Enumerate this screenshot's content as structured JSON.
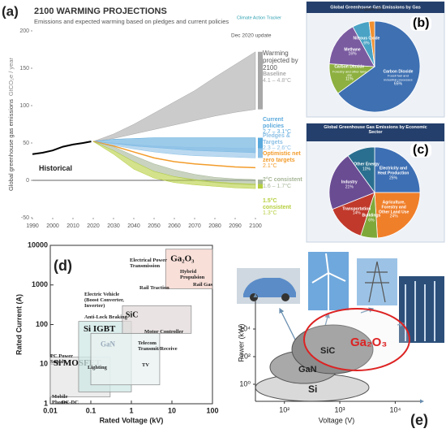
{
  "chart_data": [
    {
      "type": "line",
      "label": "(a)",
      "title": "2100 WARMING PROJECTIONS",
      "subtitle": "Emissions and expected warming based on pledges and current policies",
      "ylabel": "Global greenhouse gas emissions",
      "yunit": "GtCO₂e / year",
      "logo": "Climate Action Tracker",
      "update": "Dec 2020 update",
      "xlim": [
        1990,
        2100
      ],
      "xticks": [
        1990,
        2000,
        2010,
        2020,
        2030,
        2040,
        2050,
        2060,
        2070,
        2080,
        2090,
        2100
      ],
      "ylim": [
        -50,
        200
      ],
      "yticks": [
        -50,
        0,
        50,
        100,
        150,
        200
      ],
      "historical": {
        "name": "Historical",
        "color": "#000000",
        "x": [
          1990,
          1995,
          2000,
          2005,
          2010,
          2015,
          2019
        ],
        "values": [
          35,
          37,
          40,
          45,
          48,
          50,
          52
        ]
      },
      "band_header": "Warming projected by 2100",
      "scenario_x": [
        2020,
        2030,
        2040,
        2050,
        2060,
        2070,
        2080,
        2090,
        2100
      ],
      "scenarios": [
        {
          "name": "Baseline",
          "range": "4.1 – 4.8°C",
          "color": "#a8a8a8",
          "low": [
            52,
            56,
            62,
            68,
            74,
            80,
            86,
            91,
            95
          ],
          "high": [
            52,
            62,
            75,
            90,
            105,
            120,
            138,
            155,
            172
          ]
        },
        {
          "name": "Current policies",
          "range": "2.7 – 3.1°C",
          "color": "#5aa9dc",
          "low": [
            52,
            49,
            46,
            44,
            42,
            40,
            39,
            38,
            37
          ],
          "high": [
            52,
            55,
            56,
            57,
            57,
            57,
            57,
            57,
            57
          ]
        },
        {
          "name": "Pledges & Targets",
          "range": "2.3 – 2.6°C",
          "color": "#8cc0e6",
          "low": [
            52,
            47,
            42,
            38,
            35,
            33,
            32,
            31,
            30
          ],
          "high": [
            52,
            50,
            48,
            46,
            45,
            44,
            44,
            43,
            43
          ]
        },
        {
          "name": "Optimistic net zero targets",
          "range": "2.1°C",
          "color": "#f39c2b",
          "values": [
            52,
            46,
            38,
            30,
            25,
            22,
            20,
            18,
            17
          ]
        },
        {
          "name": "2°C consistent",
          "range": "1.6 – 1.7°C",
          "color": "#a5b596",
          "low": [
            52,
            40,
            25,
            12,
            5,
            0,
            -3,
            -5,
            -6
          ],
          "high": [
            52,
            45,
            33,
            22,
            14,
            8,
            4,
            2,
            1
          ]
        },
        {
          "name": "1.5°C consistent",
          "range": "1.3°C",
          "color": "#b5cf3e",
          "low": [
            52,
            35,
            15,
            3,
            -3,
            -6,
            -8,
            -10,
            -11
          ],
          "high": [
            52,
            40,
            25,
            12,
            5,
            1,
            -2,
            -4,
            -5
          ]
        }
      ]
    },
    {
      "type": "pie",
      "label": "(b)",
      "title": "Global Greenhouse Gas Emissions by Gas",
      "categories": [
        "Carbon Dioxide",
        "Carbon Dioxide",
        "Methane",
        "Nitrous Oxide",
        "F-gases"
      ],
      "notes": [
        "Fossil fuel and industrial processes",
        "Forestry and other land use",
        null,
        null,
        null
      ],
      "values": [
        65,
        11,
        16,
        6,
        2
      ],
      "value_labels": [
        "65%",
        "11%",
        "16%",
        "6%",
        "2%"
      ],
      "colors": [
        "#3e70b2",
        "#8db040",
        "#7a5ba0",
        "#4aa3c4",
        "#f09030"
      ]
    },
    {
      "type": "pie",
      "label": "(c)",
      "title": "Global Greenhouse Gas Emissions by Economic Sector",
      "categories": [
        "Electricity and Heat Production",
        "Agriculture, Forestry and Other Land Use",
        "Buildings",
        "Transportation",
        "Industry",
        "Other Energy"
      ],
      "notes": [
        null,
        null,
        null,
        null,
        null,
        null
      ],
      "values": [
        25,
        24,
        6,
        14,
        21,
        10
      ],
      "value_labels": [
        "25%",
        "24%",
        "6%",
        "14%",
        "21%",
        "10%"
      ],
      "colors": [
        "#3d6fb4",
        "#f07f2a",
        "#7fa83a",
        "#c0392b",
        "#6a4c93",
        "#2a6f8f"
      ]
    },
    {
      "type": "region",
      "label": "(d)",
      "xlabel": "Rated Voltage (kV)",
      "ylabel": "Rated Current (A)",
      "log": true,
      "xlim": [
        0.01,
        100
      ],
      "xticks": [
        0.01,
        0.1,
        1,
        10,
        100
      ],
      "ylim": [
        1,
        10000
      ],
      "yticks": [
        1,
        10,
        100,
        1000,
        10000
      ],
      "regions": [
        {
          "name": "Si MOSFET",
          "color": "#e6e6e6",
          "x": [
            0.01,
            0.3
          ],
          "y": [
            1.5,
            15
          ]
        },
        {
          "name": "Si IGBT",
          "color": "#cfe8e6",
          "x": [
            0.05,
            1
          ],
          "y": [
            2,
            120
          ]
        },
        {
          "name": "GaN",
          "color": "#e9f2f2",
          "x": [
            0.1,
            5
          ],
          "y": [
            3,
            60
          ]
        },
        {
          "name": "SiC",
          "color": "#e2dada",
          "x": [
            0.6,
            30
          ],
          "y": [
            60,
            300
          ]
        },
        {
          "name": "Ga₂O₃",
          "color": "#f6d4cb",
          "x": [
            7,
            100
          ],
          "y": [
            800,
            8000
          ]
        }
      ],
      "applications": [
        "Electrical Power Transmission",
        "Hybrid Propulsion",
        "Rail Gas",
        "Rail Traction",
        "Electric Vehicle (Boost Converter, Inverter)",
        "Anti-Lock Braking",
        "Motor Controller",
        "Telecom Transmit/Receive",
        "TV",
        "Lighting",
        "PC Power Supply",
        "Mobile Phones",
        "DC-DC"
      ]
    },
    {
      "type": "diagram",
      "label": "(e)",
      "xlabel": "Voltage (V)",
      "ylabel": "Power (kW)",
      "log": true,
      "xlim": [
        30,
        30000
      ],
      "xticks": [
        {
          "value": 100,
          "label": "10²"
        },
        {
          "value": 1000,
          "label": "10³"
        },
        {
          "value": 10000,
          "label": "10⁴"
        }
      ],
      "ylim": [
        0.1,
        1000000
      ],
      "yticks": [
        {
          "value": 1,
          "label": "10⁰"
        },
        {
          "value": 100,
          "label": "10²"
        },
        {
          "value": 10000,
          "label": "10⁴"
        }
      ],
      "materials": [
        "Si",
        "GaN",
        "SiC",
        "Ga₂O₃"
      ]
    }
  ]
}
